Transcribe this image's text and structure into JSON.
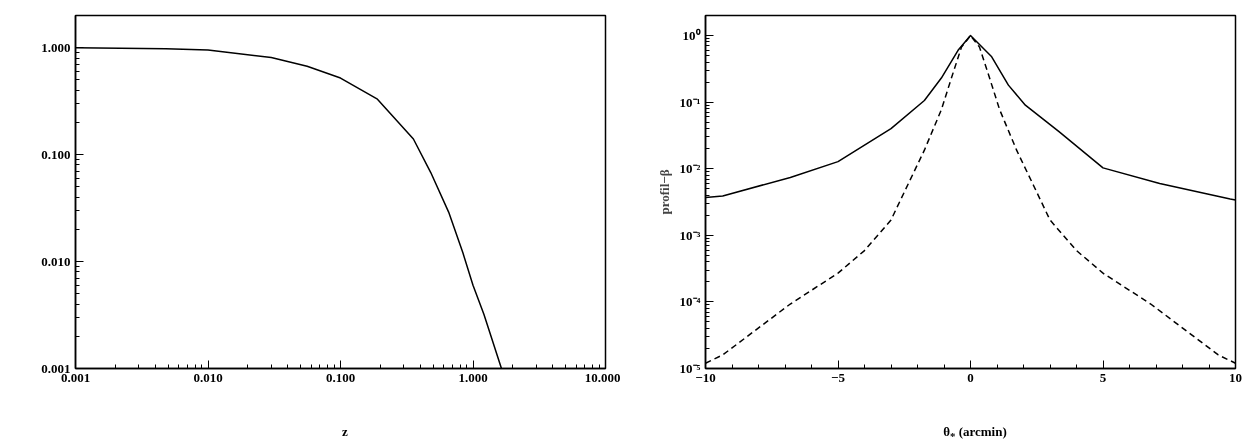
{
  "chart_data": [
    {
      "type": "line",
      "xlabel": "z",
      "log": "xy",
      "xlim": [
        0.001,
        10
      ],
      "ylim": [
        0.001,
        2.0
      ],
      "xticks": [
        {
          "value": 0.001,
          "label": "0.001"
        },
        {
          "value": 0.01,
          "label": "0.010"
        },
        {
          "value": 0.1,
          "label": "0.100"
        },
        {
          "value": 1,
          "label": "1.000"
        },
        {
          "value": 10,
          "label": "10.000"
        }
      ],
      "yticks": [
        {
          "value": 0.001,
          "label": "0.001"
        },
        {
          "value": 0.01,
          "label": "0.010"
        },
        {
          "value": 0.1,
          "label": "0.100"
        },
        {
          "value": 1,
          "label": "1.000"
        }
      ],
      "grid": false,
      "line_style": "solid",
      "series": [
        {
          "color": "#000000",
          "x": [
            0.001,
            0.0048,
            0.01,
            0.03,
            0.056,
            0.1,
            0.19,
            0.355,
            0.48,
            0.655,
            0.84,
            1.0,
            1.21,
            1.64
          ],
          "values": [
            1.0,
            0.98,
            0.95,
            0.81,
            0.67,
            0.52,
            0.33,
            0.14,
            0.068,
            0.029,
            0.012,
            0.006,
            0.0032,
            0.001
          ]
        }
      ]
    },
    {
      "type": "line",
      "xlabel": "θ$_{*}$ (arcmin)",
      "ylabel": "profil−β",
      "log": "y",
      "xlim": [
        -10,
        10
      ],
      "ylim": [
        1e-05,
        2.0
      ],
      "xticks": [
        {
          "value": -10,
          "label": "−10"
        },
        {
          "value": -5,
          "label": "−5"
        },
        0,
        5,
        10
      ],
      "yticks": [
        {
          "value": 1e-05,
          "label": "10⁻⁵"
        },
        {
          "value": 0.0001,
          "label": "10⁻⁴"
        },
        {
          "value": 0.001,
          "label": "10⁻³"
        },
        {
          "value": 0.01,
          "label": "10⁻²"
        },
        {
          "value": 0.1,
          "label": "10⁻¹"
        },
        {
          "value": 1,
          "label": "10⁰"
        }
      ],
      "grid": false,
      "series": [
        {
          "color": "#000000",
          "line_style": "solid",
          "x": [
            -10,
            -9.35,
            -6.8,
            -5,
            -3.0,
            -1.74,
            -1.1,
            -0.47,
            0,
            0.8,
            1.43,
            2.07,
            3.34,
            5,
            7.14,
            9.8,
            10
          ],
          "values": [
            0.0037,
            0.0039,
            0.0074,
            0.0128,
            0.04,
            0.106,
            0.23,
            0.6,
            1.0,
            0.48,
            0.18,
            0.09,
            0.036,
            0.0103,
            0.006,
            0.0035,
            0.0034
          ]
        },
        {
          "color": "#000000",
          "line_style": "dashed",
          "x": [
            -10,
            -9.35,
            -6.8,
            -5,
            -4.0,
            -3.0,
            -2.37,
            -1.74,
            -1.1,
            -0.72,
            -0.34,
            0,
            0.34,
            0.72,
            1.1,
            1.74,
            2.37,
            3.0,
            4.0,
            5,
            6.8,
            9.35,
            10
          ],
          "values": [
            1.2e-05,
            1.6e-05,
            9.3e-05,
            0.00027,
            0.00059,
            0.0017,
            0.0057,
            0.019,
            0.077,
            0.23,
            0.67,
            1.0,
            0.67,
            0.23,
            0.077,
            0.019,
            0.0057,
            0.0017,
            0.00059,
            0.00027,
            9.3e-05,
            1.6e-05,
            1.2e-05
          ]
        }
      ]
    }
  ]
}
